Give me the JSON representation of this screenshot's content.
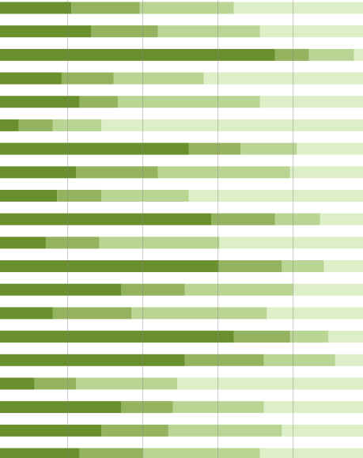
{
  "chart_data": {
    "type": "stacked-barh",
    "xlim": [
      0.1,
      4.93
    ],
    "xticks": [
      1,
      2,
      3,
      4
    ],
    "grid": true,
    "series": [
      {
        "color": "#6a8f2d",
        "values": [
          1.05,
          1.31,
          3.76,
          0.92,
          1.16,
          0.35,
          2.61,
          1.11,
          0.86,
          2.91,
          0.71,
          3.01,
          1.71,
          0.8,
          3.21,
          2.56,
          0.56,
          1.71,
          1.45,
          1.16
        ]
      },
      {
        "color": "#93b35e",
        "values": [
          0.91,
          0.89,
          0.45,
          0.69,
          0.51,
          0.45,
          0.69,
          1.09,
          0.59,
          0.85,
          0.71,
          0.84,
          0.85,
          1.05,
          0.75,
          1.05,
          0.55,
          0.69,
          0.89,
          0.84
        ]
      },
      {
        "color": "#b9d593",
        "values": [
          1.25,
          1.36,
          0.6,
          1.2,
          1.89,
          0.65,
          0.75,
          1.76,
          1.16,
          0.6,
          1.6,
          0.56,
          1.44,
          1.8,
          0.51,
          0.95,
          1.35,
          1.21,
          1.51,
          1.56
        ]
      },
      {
        "color": "#ddefc6",
        "values": [
          1.79,
          1.44,
          0.19,
          2.19,
          1.44,
          3.55,
          0.95,
          1.04,
          2.39,
          0.64,
          1.98,
          0.59,
          1.0,
          1.35,
          0.53,
          0.44,
          2.54,
          1.39,
          1.15,
          1.44
        ]
      }
    ]
  }
}
